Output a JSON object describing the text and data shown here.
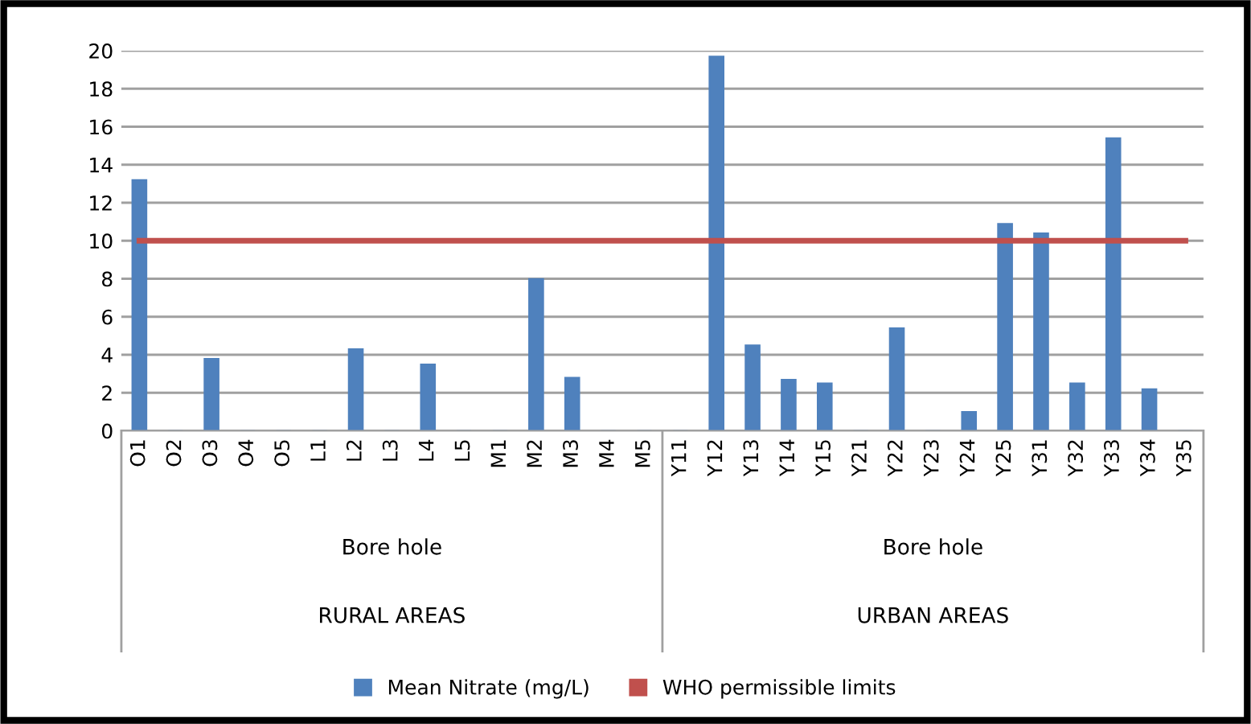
{
  "chart_data": {
    "type": "bar",
    "categories": [
      "O1",
      "O2",
      "O3",
      "O4",
      "O5",
      "L1",
      "L2",
      "L3",
      "L4",
      "L5",
      "M1",
      "M2",
      "M3",
      "M4",
      "M5",
      "Y11",
      "Y12",
      "Y13",
      "Y14",
      "Y15",
      "Y21",
      "Y22",
      "Y23",
      "Y24",
      "Y25",
      "Y31",
      "Y32",
      "Y33",
      "Y34",
      "Y35"
    ],
    "series": [
      {
        "name": "Mean Nitrate (mg/L)",
        "color": "#4f81bd",
        "values": [
          13.2,
          0,
          3.8,
          0,
          0,
          0,
          4.3,
          0,
          3.5,
          0,
          0,
          8.0,
          2.8,
          0,
          0,
          0,
          19.7,
          4.5,
          2.7,
          2.5,
          0,
          5.4,
          0,
          1.0,
          10.9,
          10.4,
          2.5,
          15.4,
          2.2,
          0
        ]
      },
      {
        "name": "WHO permissible limits",
        "color": "#c0504d",
        "type": "line",
        "values": [
          10,
          10,
          10,
          10,
          10,
          10,
          10,
          10,
          10,
          10,
          10,
          10,
          10,
          10,
          10,
          10,
          10,
          10,
          10,
          10,
          10,
          10,
          10,
          10,
          10,
          10,
          10,
          10,
          10,
          10
        ]
      }
    ],
    "annotations": [
      "Bore hole",
      "RURAL AREAS",
      "Bore hole",
      "URBAN AREAS"
    ],
    "ylim": [
      0,
      20
    ],
    "yticks": [
      0,
      2,
      4,
      6,
      8,
      10,
      12,
      14,
      16,
      18,
      20
    ],
    "grid": "y",
    "legend": "bottom"
  }
}
